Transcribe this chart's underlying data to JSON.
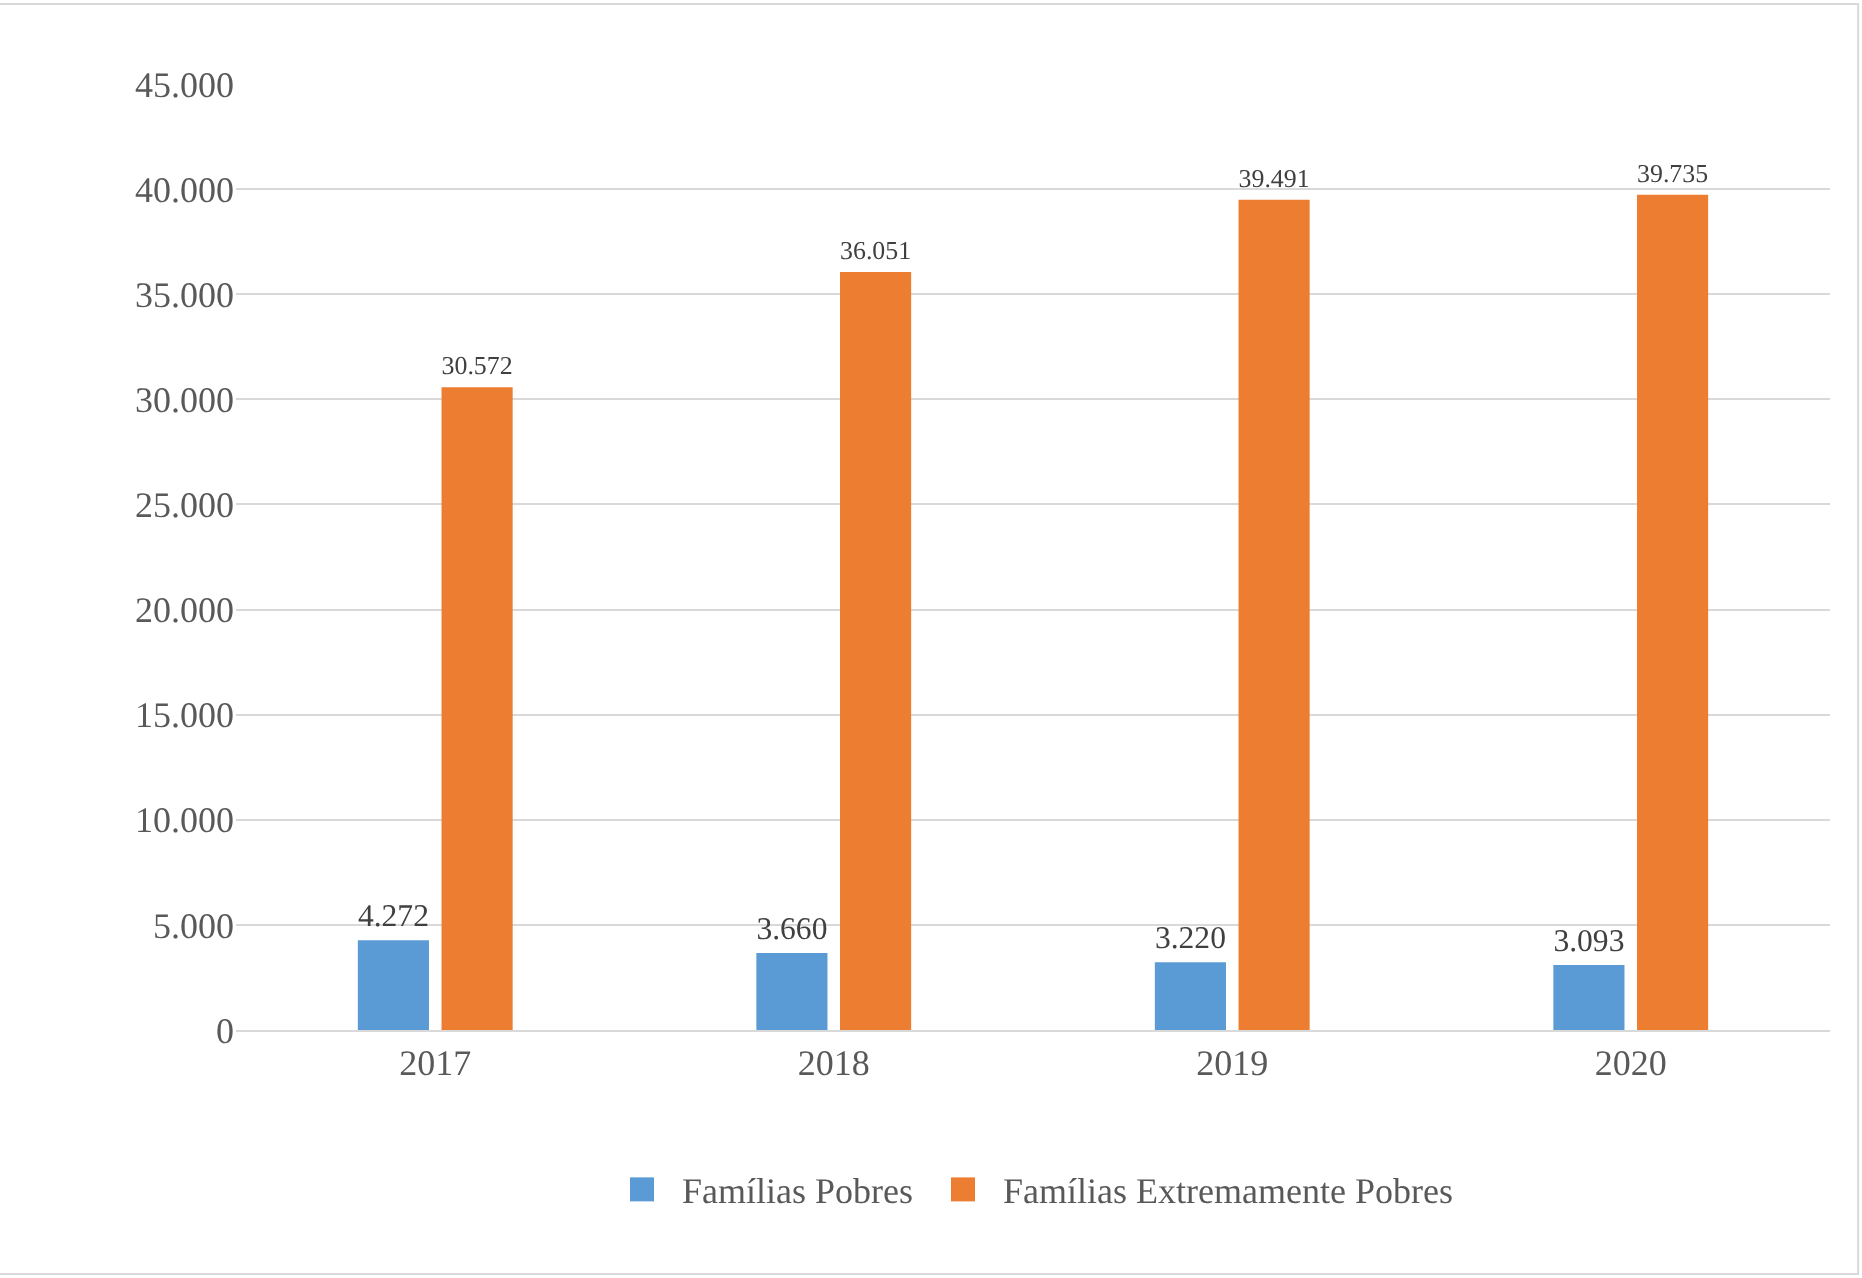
{
  "chart_data": {
    "type": "bar",
    "categories": [
      "2017",
      "2018",
      "2019",
      "2020"
    ],
    "series": [
      {
        "name": "Famílias Pobres",
        "color": "#5b9bd5",
        "values": [
          4272,
          3660,
          3220,
          3093
        ],
        "value_labels": [
          "4.272",
          "3.660",
          "3.220",
          "3.093"
        ]
      },
      {
        "name": "Famílias Extremamente Pobres",
        "color": "#ed7d31",
        "values": [
          30572,
          36051,
          39491,
          39735
        ],
        "value_labels": [
          "30.572",
          "36.051",
          "39.491",
          "39.735"
        ]
      }
    ],
    "ylim": [
      0,
      45000
    ],
    "yticks": [
      {
        "value": 0,
        "label": "0"
      },
      {
        "value": 5000,
        "label": "5.000"
      },
      {
        "value": 10000,
        "label": "10.000"
      },
      {
        "value": 15000,
        "label": "15.000"
      },
      {
        "value": 20000,
        "label": "20.000"
      },
      {
        "value": 25000,
        "label": "25.000"
      },
      {
        "value": 30000,
        "label": "30.000"
      },
      {
        "value": 35000,
        "label": "35.000"
      },
      {
        "value": 40000,
        "label": "40.000"
      },
      {
        "value": 45000,
        "label": "45.000"
      }
    ],
    "grid": "y",
    "legend": "bottom"
  }
}
